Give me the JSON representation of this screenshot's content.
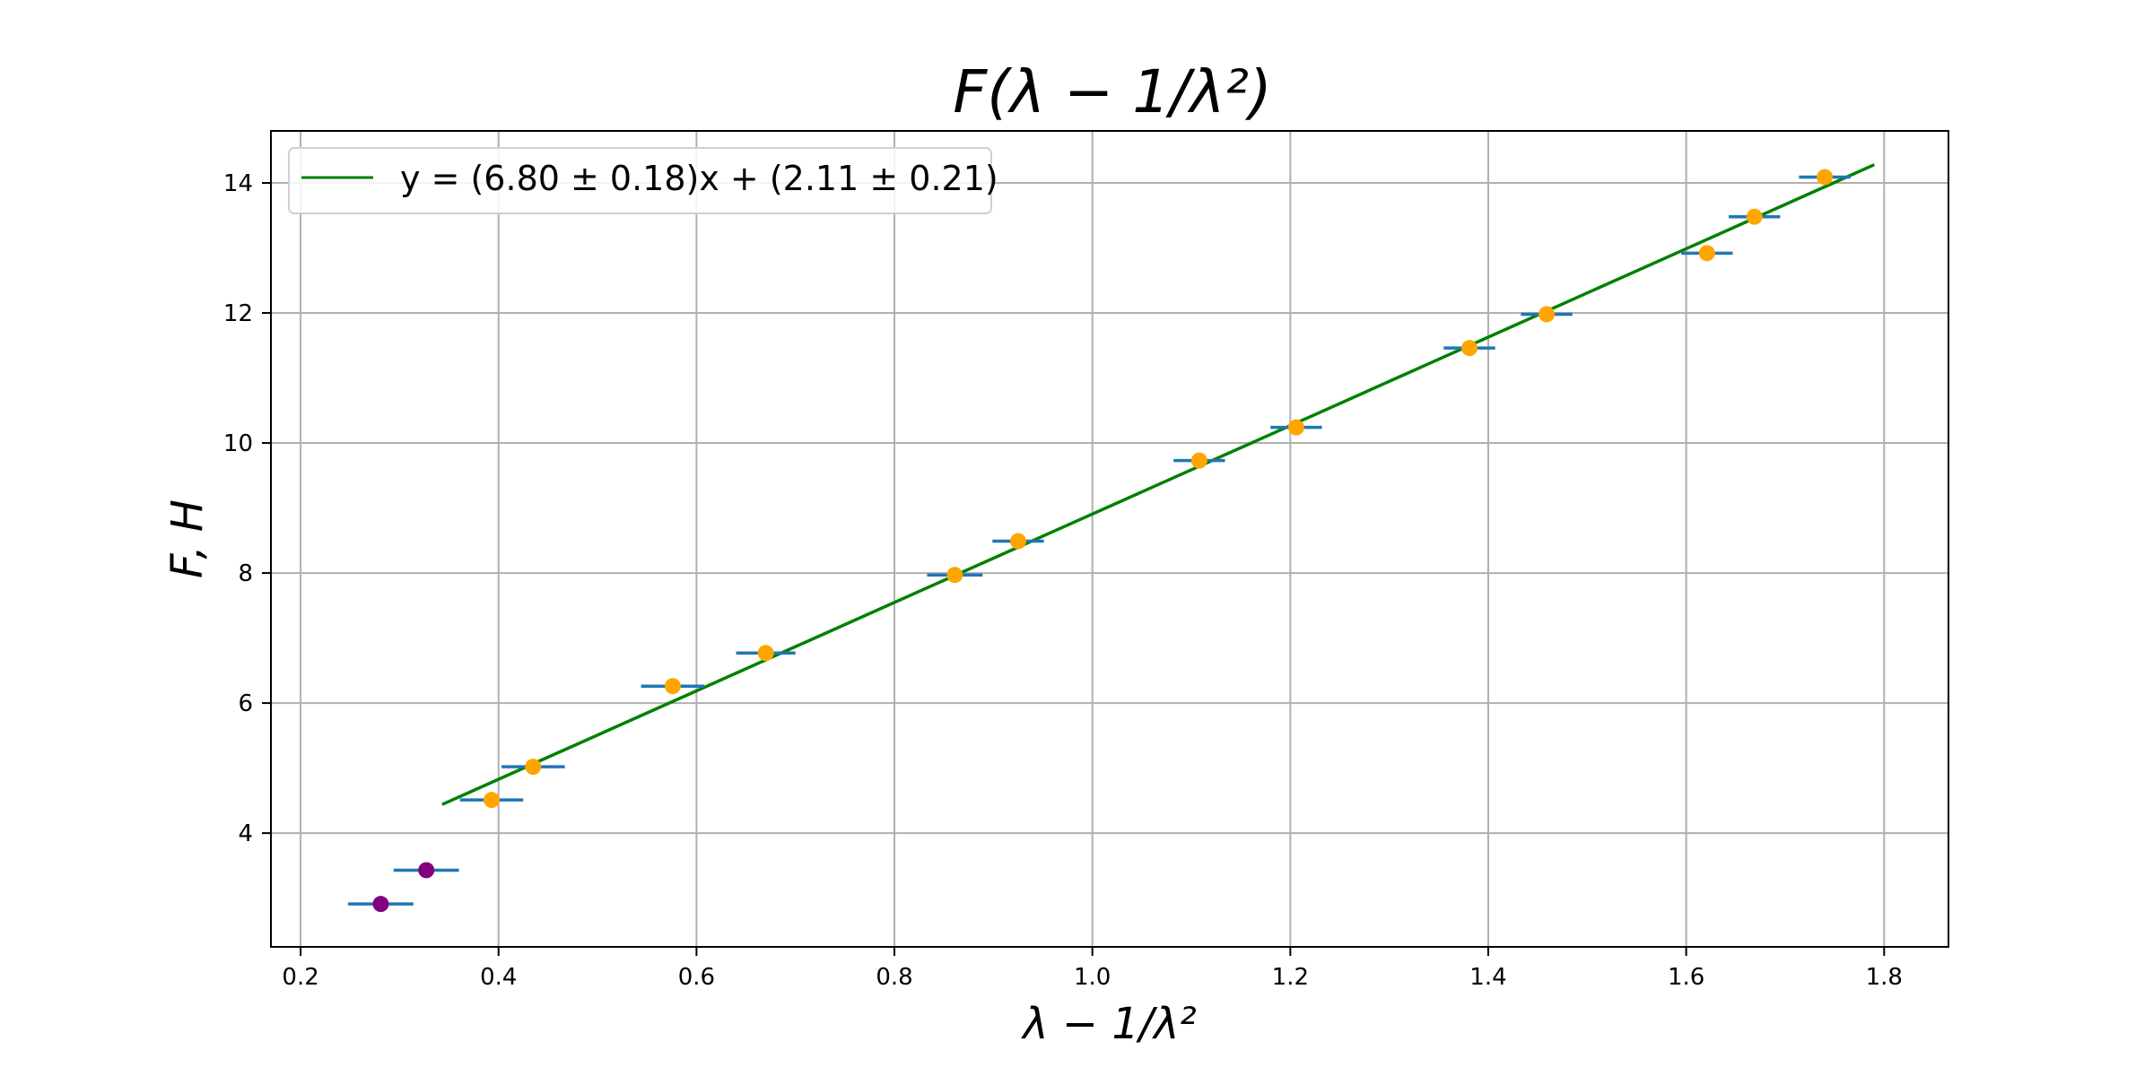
{
  "chart_data": {
    "type": "scatter",
    "title": "F(λ − 1/λ²)",
    "xlabel": "λ − 1/λ²",
    "ylabel": "F, H",
    "xlim": [
      0.17,
      1.865
    ],
    "ylim": [
      2.25,
      14.8
    ],
    "xticks": [
      0.2,
      0.4,
      0.6,
      0.8,
      1.0,
      1.2,
      1.4,
      1.6,
      1.8
    ],
    "xtick_labels": [
      "0.2",
      "0.4",
      "0.6",
      "0.8",
      "1.0",
      "1.2",
      "1.4",
      "1.6",
      "1.8"
    ],
    "yticks": [
      4,
      6,
      8,
      10,
      12,
      14
    ],
    "ytick_labels": [
      "4",
      "6",
      "8",
      "10",
      "12",
      "14"
    ],
    "grid": true,
    "legend_position": "top-left",
    "colors": {
      "fit_line": "#008000",
      "point_used": "#FFA500",
      "point_excluded": "#800080",
      "error_bar": "#1f77b4",
      "grid": "#b0b0b0",
      "axes": "#000000"
    },
    "series": [
      {
        "name": "y = (6.80 ± 0.18)x + (2.11 ± 0.21)",
        "kind": "line",
        "x": [
          0.343,
          1.79
        ],
        "y": [
          4.44,
          14.28
        ]
      },
      {
        "kind": "scatter-errorbar",
        "color": "#FFA500",
        "x": [
          0.393,
          0.435,
          0.576,
          0.67,
          0.861,
          0.925,
          1.108,
          1.206,
          1.381,
          1.459,
          1.621,
          1.669,
          1.74
        ],
        "y": [
          4.51,
          5.02,
          6.26,
          6.77,
          7.97,
          8.49,
          9.73,
          10.24,
          11.46,
          11.98,
          12.92,
          13.48,
          14.09
        ],
        "xerr": [
          0.032,
          0.032,
          0.032,
          0.03,
          0.028,
          0.026,
          0.026,
          0.026,
          0.026,
          0.026,
          0.026,
          0.026,
          0.026
        ]
      },
      {
        "kind": "scatter-errorbar",
        "color": "#800080",
        "x": [
          0.281,
          0.327
        ],
        "y": [
          2.91,
          3.43
        ],
        "xerr": [
          0.033,
          0.033
        ]
      }
    ]
  }
}
